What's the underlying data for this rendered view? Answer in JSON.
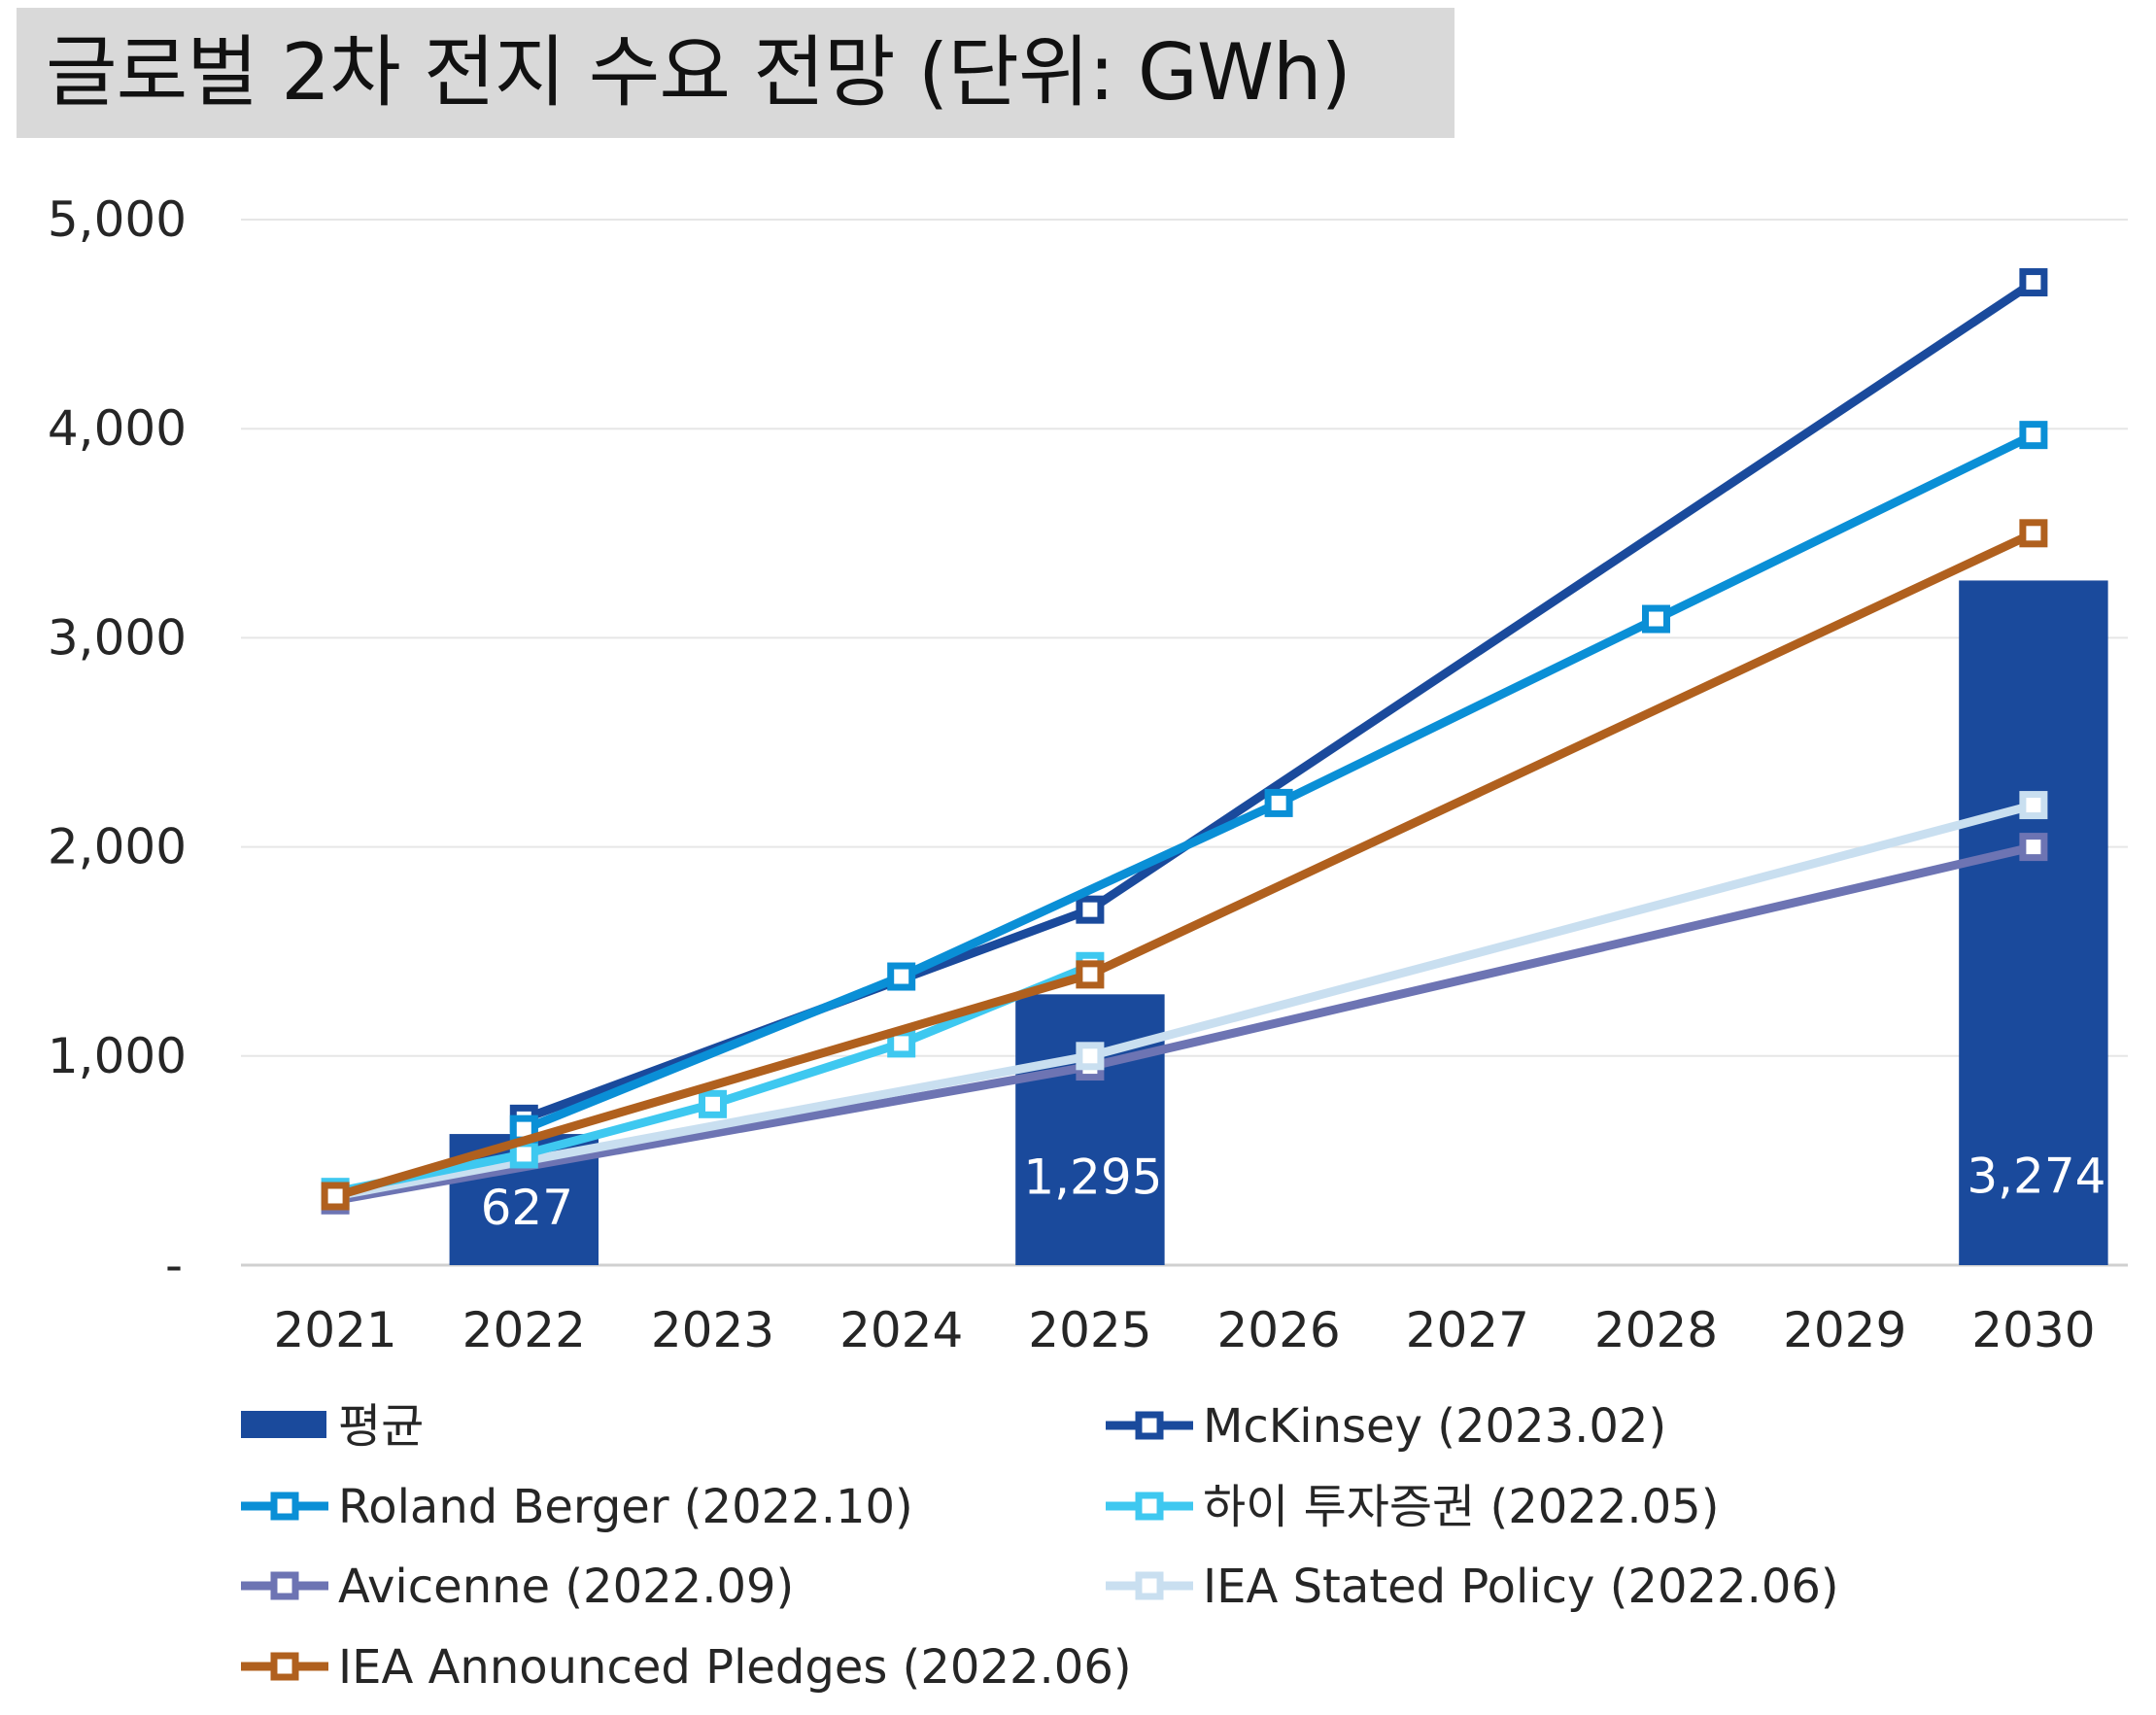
{
  "title": "글로벌 2차 전지 수요 전망 (단위: GWh)",
  "chart_data": {
    "type": "bar+line",
    "categories": [
      "2021",
      "2022",
      "2023",
      "2024",
      "2025",
      "2026",
      "2027",
      "2028",
      "2029",
      "2030"
    ],
    "y_ticks": [
      "-",
      "1,000",
      "2,000",
      "3,000",
      "4,000",
      "5,000"
    ],
    "ylim": [
      0,
      5000
    ],
    "grid": true,
    "legend_position": "bottom",
    "bars": {
      "name": "평균",
      "color": "#1a4a9c",
      "points": [
        {
          "x": "2022",
          "value": 627,
          "label": "627"
        },
        {
          "x": "2025",
          "value": 1295,
          "label": "1,295"
        },
        {
          "x": "2030",
          "value": 3274,
          "label": "3,274"
        }
      ]
    },
    "series": [
      {
        "name": "McKinsey (2023.02)",
        "color": "#1a4a9c",
        "points": [
          {
            "x": "2022",
            "y": 700
          },
          {
            "x": "2025",
            "y": 1700
          },
          {
            "x": "2030",
            "y": 4700
          }
        ]
      },
      {
        "name": "Roland Berger (2022.10)",
        "color": "#0a8fd6",
        "points": [
          {
            "x": "2022",
            "y": 650
          },
          {
            "x": "2024",
            "y": 1380
          },
          {
            "x": "2026",
            "y": 2210
          },
          {
            "x": "2028",
            "y": 3090
          },
          {
            "x": "2030",
            "y": 3970
          }
        ]
      },
      {
        "name": "하이 투자증권 (2022.05)",
        "color": "#3ec8f0",
        "points": [
          {
            "x": "2021",
            "y": 350
          },
          {
            "x": "2022",
            "y": 530
          },
          {
            "x": "2023",
            "y": 770
          },
          {
            "x": "2024",
            "y": 1060
          },
          {
            "x": "2025",
            "y": 1430
          }
        ]
      },
      {
        "name": "Avicenne (2022.09)",
        "color": "#6d74b3",
        "points": [
          {
            "x": "2021",
            "y": 310
          },
          {
            "x": "2025",
            "y": 950
          },
          {
            "x": "2030",
            "y": 2000
          }
        ]
      },
      {
        "name": "IEA Stated Policy (2022.06)",
        "color": "#c9dff0",
        "points": [
          {
            "x": "2021",
            "y": 330
          },
          {
            "x": "2025",
            "y": 1000
          },
          {
            "x": "2030",
            "y": 2200
          }
        ]
      },
      {
        "name": "IEA Announced Pledges (2022.06)",
        "color": "#b0601e",
        "points": [
          {
            "x": "2021",
            "y": 330
          },
          {
            "x": "2025",
            "y": 1390
          },
          {
            "x": "2030",
            "y": 3500
          }
        ]
      }
    ]
  }
}
